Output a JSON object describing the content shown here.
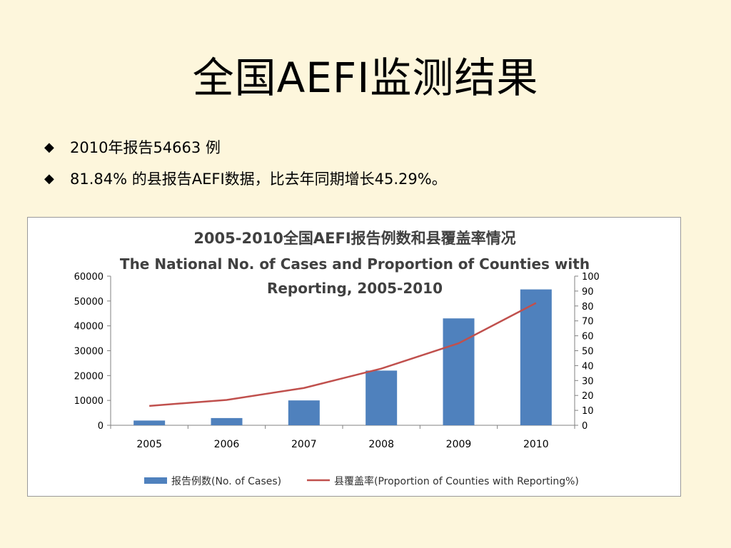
{
  "slide": {
    "title": "全国AEFI监测结果",
    "bullets": [
      "2010年报告54663 例",
      "81.84% 的县报告AEFI数据，比去年同期增长45.29%。"
    ],
    "bullet_icon": "diamond-icon"
  },
  "chart_data": {
    "type": "bar",
    "title_cn": "2005-2010全国AEFI报告例数和县覆盖率情况",
    "title_en_line1": "The National No. of Cases and Proportion of Counties with",
    "title_en_line2": "Reporting, 2005-2010",
    "categories": [
      "2005",
      "2006",
      "2007",
      "2008",
      "2009",
      "2010"
    ],
    "series": [
      {
        "name": "报告例数(No. of Cases)",
        "type": "bar",
        "axis": "left",
        "color": "#4f81bd",
        "values": [
          1900,
          2900,
          10000,
          22000,
          43000,
          54663
        ]
      },
      {
        "name": "县覆盖率(Proportion of Counties with Reporting%)",
        "type": "line",
        "axis": "right",
        "color": "#c0504d",
        "values": [
          13,
          17,
          25,
          38,
          55,
          82
        ]
      }
    ],
    "y_left": {
      "min": 0,
      "max": 60000,
      "ticks": [
        "0",
        "10000",
        "20000",
        "30000",
        "40000",
        "50000",
        "60000"
      ]
    },
    "y_right": {
      "min": 0,
      "max": 100,
      "ticks": [
        "0",
        "10",
        "20",
        "30",
        "40",
        "50",
        "60",
        "70",
        "80",
        "90",
        "100"
      ]
    },
    "grid": false,
    "legend_position": "bottom"
  }
}
